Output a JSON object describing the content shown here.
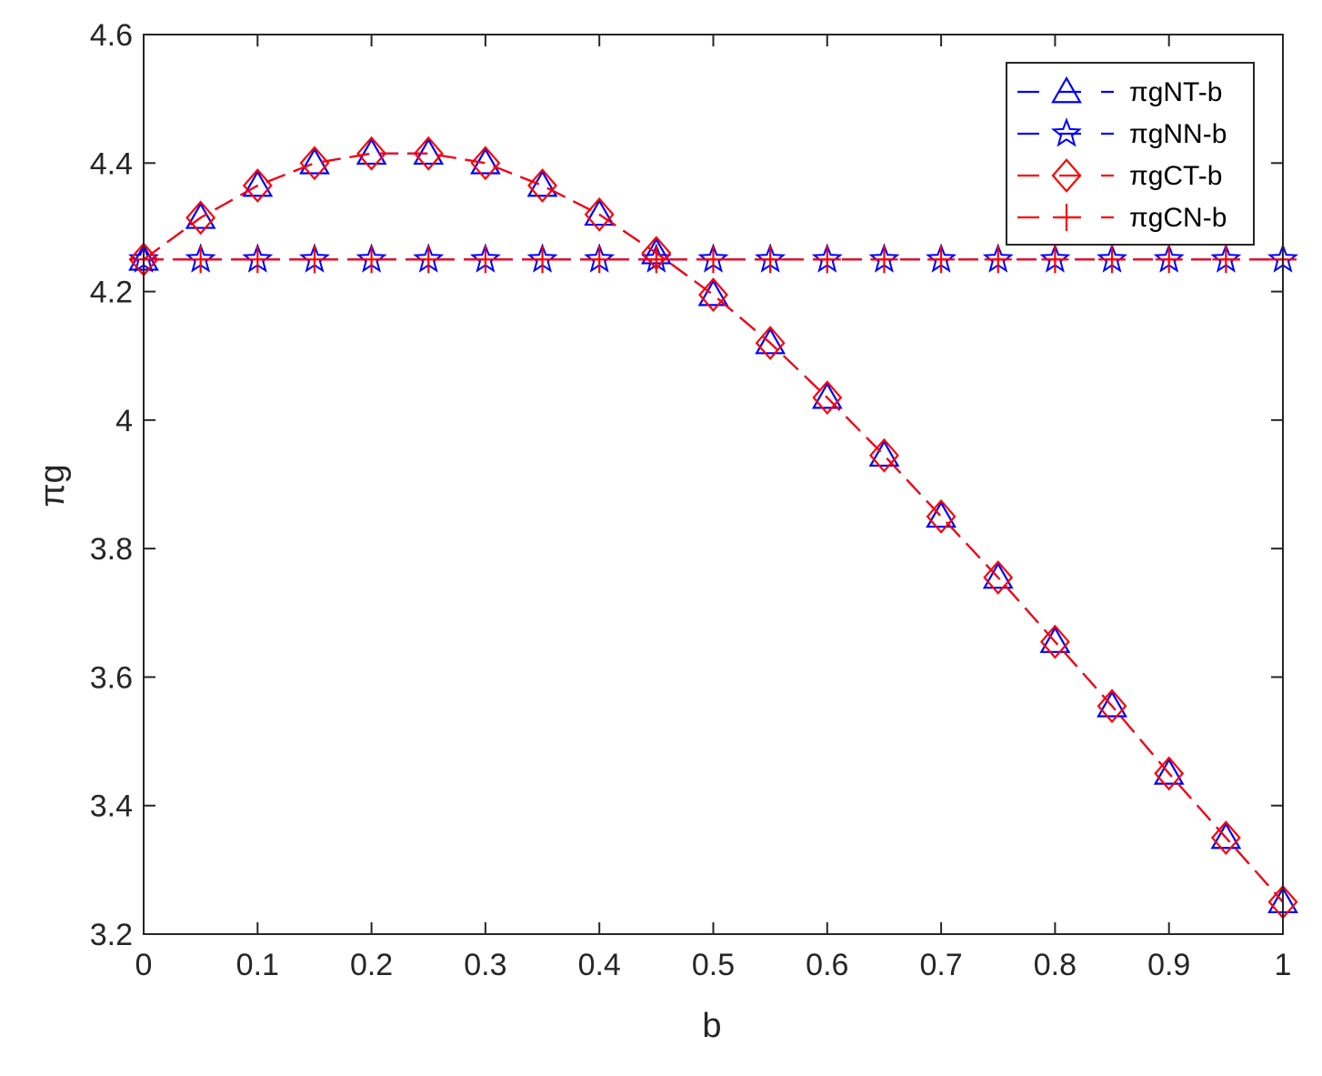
{
  "chart_data": {
    "type": "line",
    "title": "",
    "xlabel": "b",
    "ylabel": "πg",
    "xlim": [
      0,
      1
    ],
    "ylim": [
      3.2,
      4.6
    ],
    "x_ticks": [
      "0",
      "0.1",
      "0.2",
      "0.3",
      "0.4",
      "0.5",
      "0.6",
      "0.7",
      "0.8",
      "0.9",
      "1"
    ],
    "y_ticks": [
      "3.2",
      "3.4",
      "3.6",
      "3.8",
      "4",
      "4.2",
      "4.4",
      "4.6"
    ],
    "grid": false,
    "legend_position": "top-right",
    "x": [
      0,
      0.05,
      0.1,
      0.15,
      0.2,
      0.25,
      0.3,
      0.35,
      0.4,
      0.45,
      0.5,
      0.55,
      0.6,
      0.65,
      0.7,
      0.75,
      0.8,
      0.85,
      0.9,
      0.95,
      1
    ],
    "series": [
      {
        "name": "πgNT-b",
        "color": "#0000ff",
        "marker": "triangle",
        "values": [
          4.25,
          4.315,
          4.365,
          4.4,
          4.415,
          4.415,
          4.4,
          4.365,
          4.32,
          4.26,
          4.195,
          4.12,
          4.035,
          3.945,
          3.85,
          3.755,
          3.655,
          3.555,
          3.45,
          3.35,
          3.25
        ]
      },
      {
        "name": "πgNN-b",
        "color": "#0000ff",
        "marker": "star",
        "values": [
          4.25,
          4.25,
          4.25,
          4.25,
          4.25,
          4.25,
          4.25,
          4.25,
          4.25,
          4.25,
          4.25,
          4.25,
          4.25,
          4.25,
          4.25,
          4.25,
          4.25,
          4.25,
          4.25,
          4.25,
          4.25
        ]
      },
      {
        "name": "πgCT-b",
        "color": "#ff0000",
        "marker": "diamond",
        "values": [
          4.25,
          4.315,
          4.365,
          4.4,
          4.415,
          4.415,
          4.4,
          4.365,
          4.32,
          4.26,
          4.195,
          4.12,
          4.035,
          3.945,
          3.85,
          3.755,
          3.655,
          3.555,
          3.45,
          3.35,
          3.25
        ]
      },
      {
        "name": "πgCN-b",
        "color": "#ff0000",
        "marker": "plus",
        "values": [
          4.25,
          4.25,
          4.25,
          4.25,
          4.25,
          4.25,
          4.25,
          4.25,
          4.25,
          4.25,
          4.25,
          4.25,
          4.25,
          4.25,
          4.25,
          4.25,
          4.25,
          4.25,
          4.25,
          4.25,
          4.25
        ]
      }
    ]
  }
}
